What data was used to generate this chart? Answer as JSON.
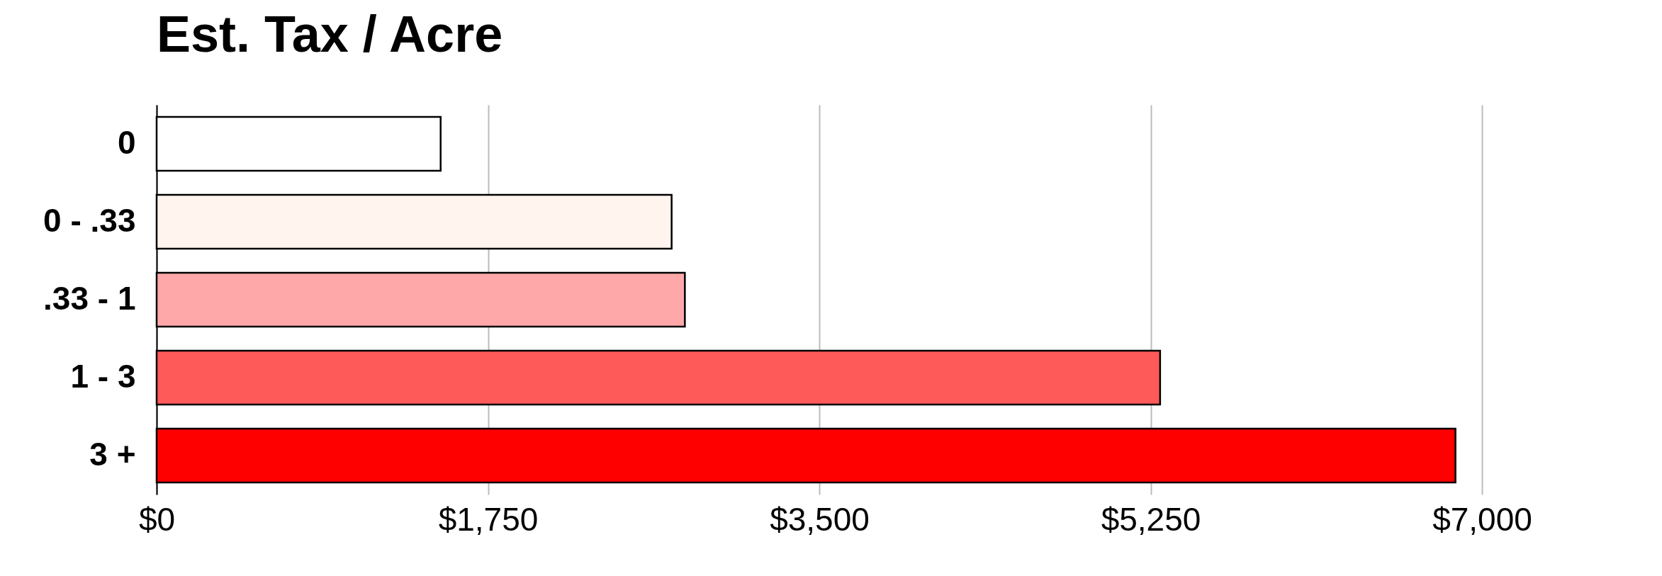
{
  "chart_data": {
    "type": "bar",
    "orientation": "horizontal",
    "title": "Est. Tax / Acre",
    "categories": [
      "0",
      "0 - .33",
      ".33 - 1",
      "1 - 3",
      "3 +"
    ],
    "values": [
      1500,
      2720,
      2790,
      5300,
      6860
    ],
    "colors": [
      "#ffffff",
      "#fff4ee",
      "#ffa8aa",
      "#ff5a5a",
      "#ff0000"
    ],
    "xlim": [
      0,
      7000
    ],
    "xticks": [
      {
        "value": 0,
        "label": "$0"
      },
      {
        "value": 1750,
        "label": "$1,750"
      },
      {
        "value": 3500,
        "label": "$3,500"
      },
      {
        "value": 5250,
        "label": "$5,250"
      },
      {
        "value": 7000,
        "label": "$7,000"
      }
    ],
    "grid": "x"
  }
}
